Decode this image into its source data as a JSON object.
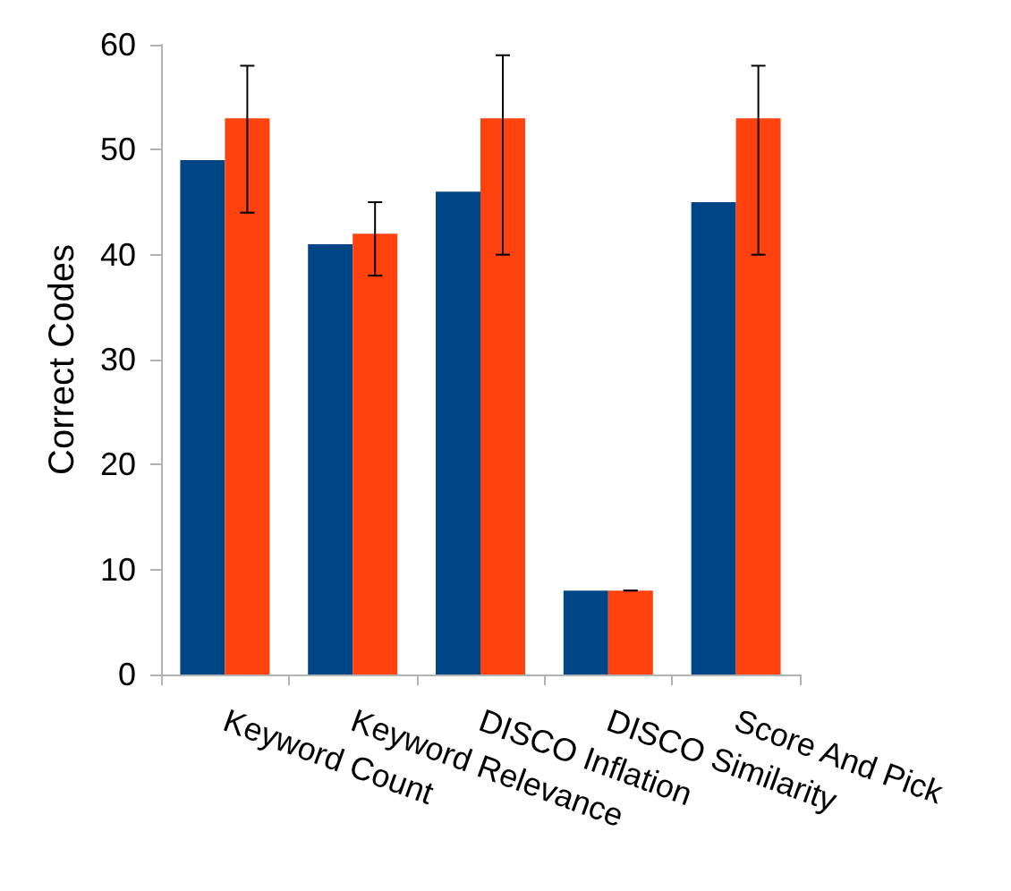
{
  "chart_data": {
    "type": "bar",
    "ylabel": "Correct Codes",
    "categories": [
      "Keyword Count",
      "Keyword Relevance",
      "DISCO Inflation",
      "DISCO Similarity",
      "Score And Pick"
    ],
    "series": [
      {
        "color": "#004586",
        "values": [
          49,
          41,
          46,
          8,
          45
        ]
      },
      {
        "color": "#ff420e",
        "values": [
          53,
          42,
          53,
          8,
          53
        ],
        "errors": [
          [
            44,
            58
          ],
          [
            38,
            45
          ],
          [
            40,
            59
          ],
          [
            8,
            8
          ],
          [
            40,
            58
          ]
        ]
      }
    ],
    "ylim": [
      0,
      60
    ],
    "yticks": [
      0,
      10,
      20,
      30,
      40,
      50,
      60
    ]
  }
}
